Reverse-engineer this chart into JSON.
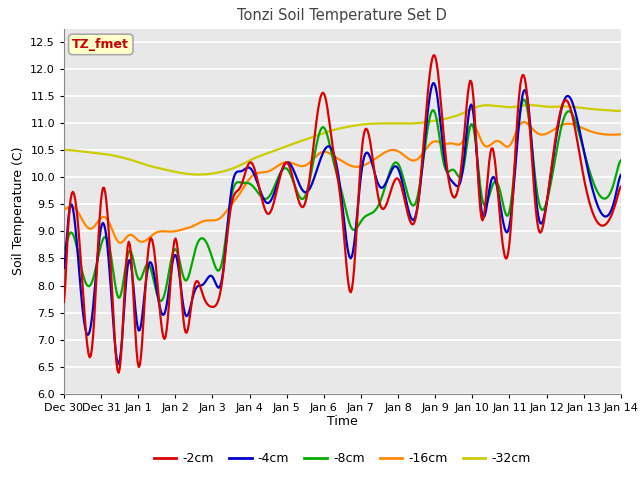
{
  "title": "Tonzi Soil Temperature Set D",
  "xlabel": "Time",
  "ylabel": "Soil Temperature (C)",
  "ylim": [
    6.0,
    12.75
  ],
  "fig_bg_color": "#ffffff",
  "plot_bg_color": "#e8e8e8",
  "grid_color": "#ffffff",
  "annotation_text": "TZ_fmet",
  "annotation_bg": "#ffffcc",
  "annotation_border": "#aaaaaa",
  "annotation_color": "#cc0000",
  "line_colors": {
    "-2cm": "#dd0000",
    "-4cm": "#0000cc",
    "-8cm": "#00aa00",
    "-16cm": "#ff8800",
    "-32cm": "#cccc00"
  },
  "legend_labels": [
    "-2cm",
    "-4cm",
    "-8cm",
    "-16cm",
    "-32cm"
  ],
  "tick_labels": [
    "Dec 30",
    "Dec 31",
    "Jan 1",
    "Jan 2",
    "Jan 3",
    "Jan 4",
    "Jan 5",
    "Jan 6",
    "Jan 7",
    "Jan 8",
    "Jan 9",
    "Jan 10",
    "Jan 11",
    "Jan 12",
    "Jan 13",
    "Jan 14"
  ],
  "num_points": 500,
  "days": 15
}
